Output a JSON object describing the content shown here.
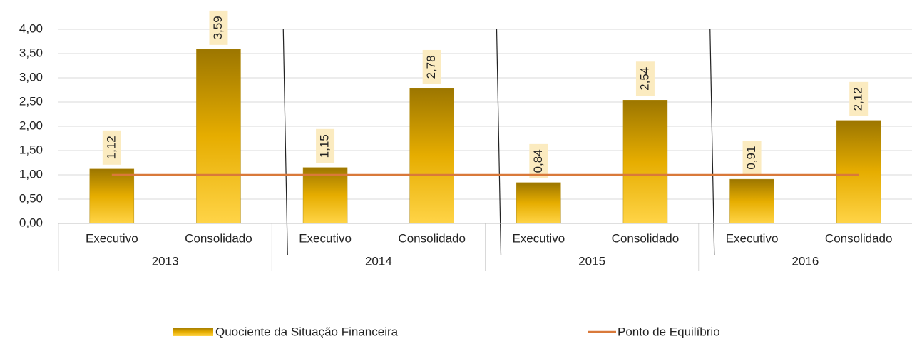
{
  "chart_data": {
    "type": "bar",
    "categories": [
      "Executivo",
      "Consolidado",
      "Executivo",
      "Consolidado",
      "Executivo",
      "Consolidado",
      "Executivo",
      "Consolidado"
    ],
    "groups": [
      "2013",
      "2014",
      "2015",
      "2016"
    ],
    "series": [
      {
        "name": "Quociente da Situação Financeira",
        "type": "bar",
        "color": "#f5be12",
        "values": [
          1.12,
          3.59,
          1.15,
          2.78,
          0.84,
          2.54,
          0.91,
          2.12
        ],
        "value_labels": [
          "1,12",
          "3,59",
          "1,15",
          "2,78",
          "0,84",
          "2,54",
          "0,91",
          "2,12"
        ]
      },
      {
        "name": "Ponto de Equilíbrio",
        "type": "line",
        "color": "#d9793a",
        "values": [
          1,
          1,
          1,
          1,
          1,
          1,
          1,
          1
        ]
      }
    ],
    "ylim": [
      0,
      4
    ],
    "yticks": [
      {
        "value": 0,
        "label": "0,00"
      },
      {
        "value": 0.5,
        "label": "0,50"
      },
      {
        "value": 1,
        "label": "1,00"
      },
      {
        "value": 1.5,
        "label": "1,50"
      },
      {
        "value": 2,
        "label": "2,00"
      },
      {
        "value": 2.5,
        "label": "2,50"
      },
      {
        "value": 3,
        "label": "3,00"
      },
      {
        "value": 3.5,
        "label": "3,50"
      },
      {
        "value": 4,
        "label": "4,00"
      }
    ],
    "grid": true,
    "legend": "bottom"
  }
}
